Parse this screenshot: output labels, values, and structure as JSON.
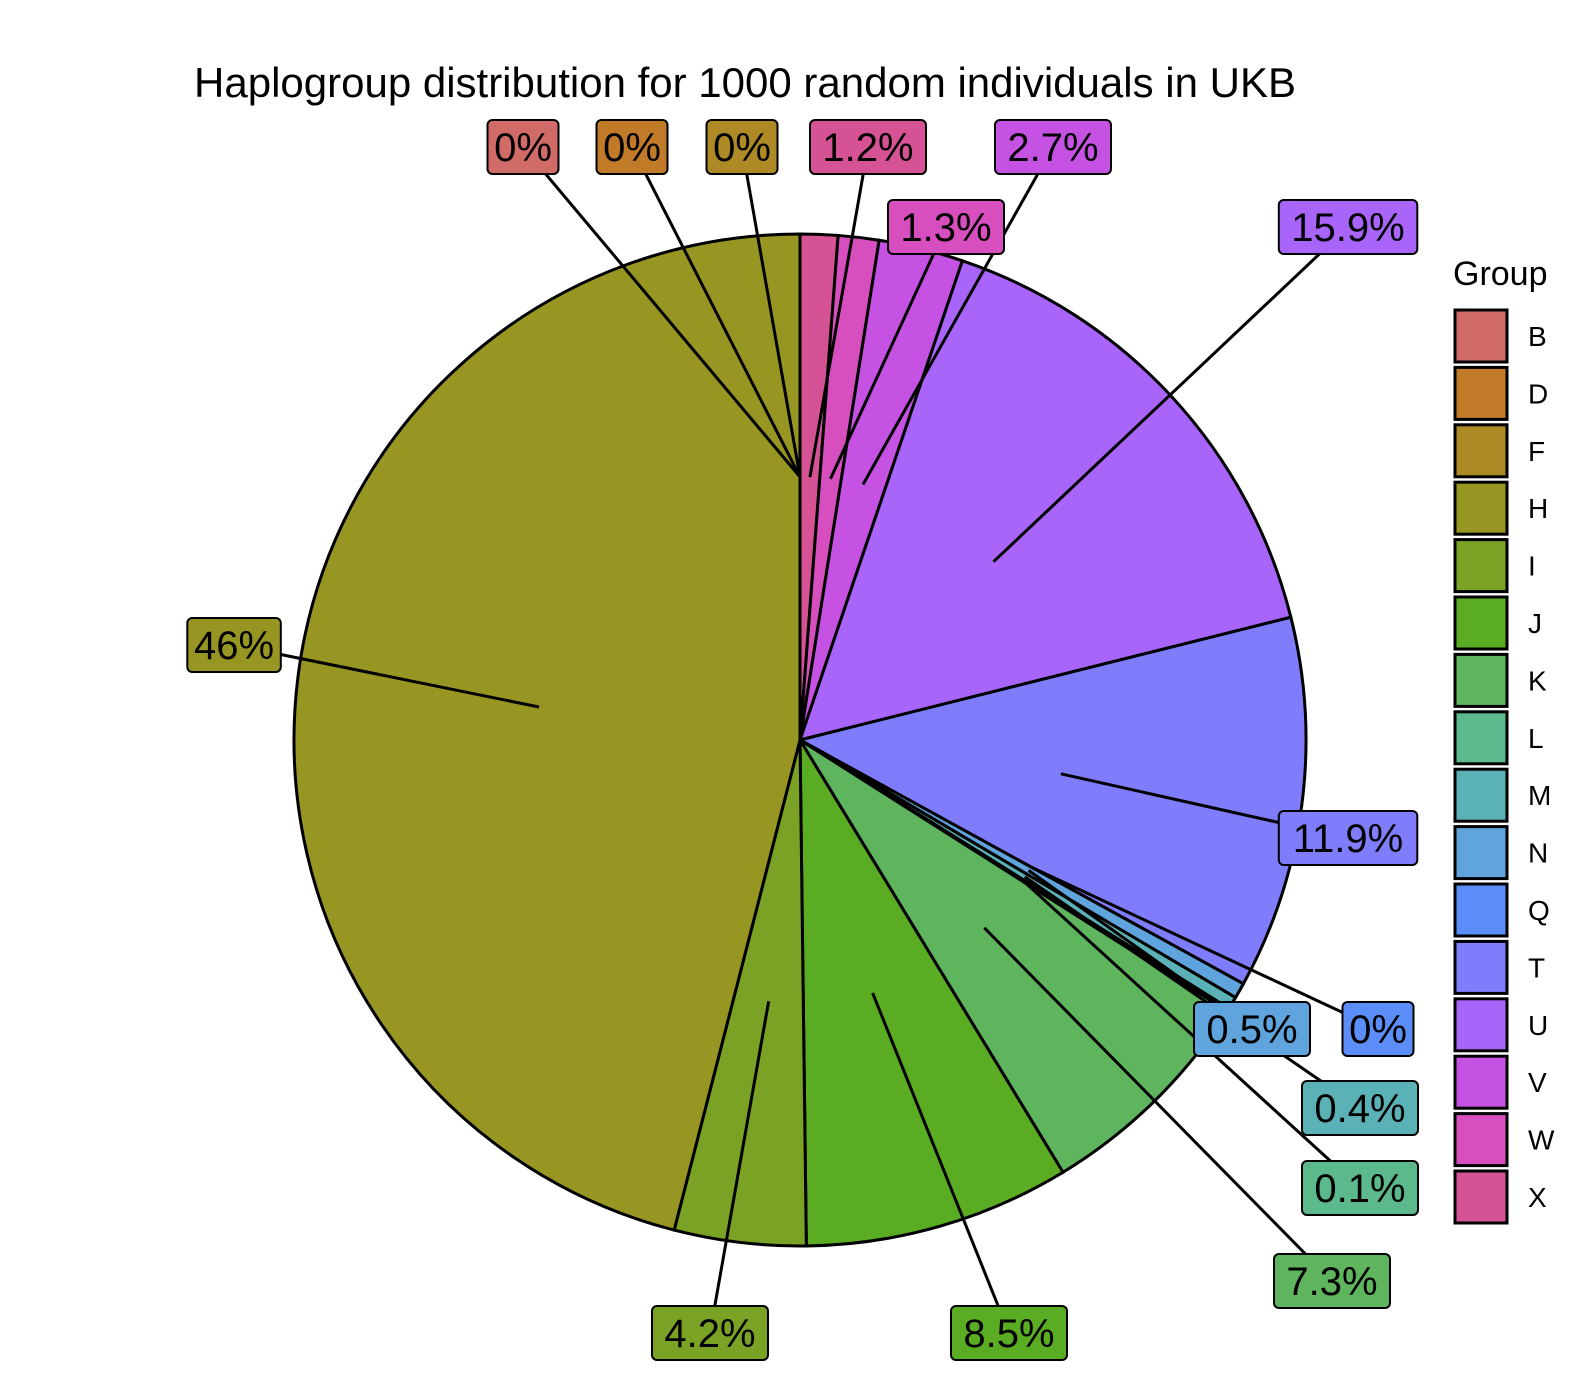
{
  "chart_data": {
    "type": "pie",
    "title": "Haplogroup distribution for 1000 random individuals in UKB",
    "legend": {
      "title": "Group",
      "position": "right",
      "items": [
        {
          "name": "B",
          "color": "#D16B67"
        },
        {
          "name": "D",
          "color": "#C17A27"
        },
        {
          "name": "F",
          "color": "#AD8A25"
        },
        {
          "name": "H",
          "color": "#979623"
        },
        {
          "name": "I",
          "color": "#7AA224"
        },
        {
          "name": "J",
          "color": "#5AAC22"
        },
        {
          "name": "K",
          "color": "#5FB45E"
        },
        {
          "name": "L",
          "color": "#5CB88D"
        },
        {
          "name": "M",
          "color": "#5BB2B6"
        },
        {
          "name": "N",
          "color": "#5FA4DC"
        },
        {
          "name": "Q",
          "color": "#5B8EF8"
        },
        {
          "name": "T",
          "color": "#7F7DFB"
        },
        {
          "name": "U",
          "color": "#A965FA"
        },
        {
          "name": "V",
          "color": "#C552E3"
        },
        {
          "name": "W",
          "color": "#D74FBE"
        },
        {
          "name": "X",
          "color": "#D55394"
        }
      ]
    },
    "slices": [
      {
        "group": "X",
        "value": 1.2,
        "label": "1.2%"
      },
      {
        "group": "W",
        "value": 1.3,
        "label": "1.3%"
      },
      {
        "group": "V",
        "value": 2.7,
        "label": "2.7%"
      },
      {
        "group": "U",
        "value": 15.9,
        "label": "15.9%"
      },
      {
        "group": "T",
        "value": 11.9,
        "label": "11.9%"
      },
      {
        "group": "Q",
        "value": 0,
        "label": "0%"
      },
      {
        "group": "N",
        "value": 0.5,
        "label": "0.5%"
      },
      {
        "group": "M",
        "value": 0.4,
        "label": "0.4%"
      },
      {
        "group": "L",
        "value": 0.1,
        "label": "0.1%"
      },
      {
        "group": "K",
        "value": 7.3,
        "label": "7.3%"
      },
      {
        "group": "J",
        "value": 8.5,
        "label": "8.5%"
      },
      {
        "group": "I",
        "value": 4.2,
        "label": "4.2%"
      },
      {
        "group": "H",
        "value": 46,
        "label": "46%"
      },
      {
        "group": "F",
        "value": 0,
        "label": "0%"
      },
      {
        "group": "D",
        "value": 0,
        "label": "0%"
      },
      {
        "group": "B",
        "value": 0,
        "label": "0%"
      }
    ]
  }
}
